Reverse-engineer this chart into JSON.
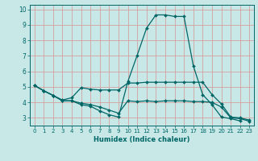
{
  "xlabel": "Humidex (Indice chaleur)",
  "ylabel": "",
  "bg_color": "#c8e8e8",
  "grid_color": "#d4a0a0",
  "line_color": "#006666",
  "xlim": [
    -0.5,
    23.5
  ],
  "ylim": [
    2.5,
    10.3
  ],
  "xticks": [
    0,
    1,
    2,
    3,
    4,
    5,
    6,
    7,
    8,
    9,
    10,
    11,
    12,
    13,
    14,
    15,
    16,
    17,
    18,
    19,
    20,
    21,
    22,
    23
  ],
  "yticks": [
    3,
    4,
    5,
    6,
    7,
    8,
    9,
    10
  ],
  "series": [
    {
      "x": [
        0,
        1,
        2,
        3,
        4,
        5,
        6,
        7,
        8,
        9,
        10,
        11,
        12,
        13,
        14,
        15,
        16,
        17,
        18,
        19,
        20,
        21,
        22,
        23
      ],
      "y": [
        5.1,
        4.75,
        4.45,
        4.1,
        4.1,
        3.85,
        3.75,
        3.45,
        3.2,
        3.05,
        5.35,
        7.05,
        8.8,
        9.65,
        9.65,
        9.55,
        9.55,
        6.35,
        4.5,
        3.85,
        3.05,
        2.95,
        2.8,
        null
      ]
    },
    {
      "x": [
        0,
        1,
        2,
        3,
        4,
        5,
        6,
        7,
        8,
        9,
        10,
        11,
        12,
        13,
        14,
        15,
        16,
        17,
        18,
        19,
        20,
        21,
        22,
        23
      ],
      "y": [
        5.1,
        4.75,
        4.45,
        4.15,
        4.3,
        4.95,
        4.85,
        4.8,
        4.8,
        4.8,
        5.25,
        5.25,
        5.3,
        5.3,
        5.3,
        5.3,
        5.3,
        5.3,
        5.3,
        4.5,
        3.9,
        3.05,
        3.0,
        2.85
      ]
    },
    {
      "x": [
        0,
        1,
        2,
        3,
        4,
        5,
        6,
        7,
        8,
        9,
        10,
        11,
        12,
        13,
        14,
        15,
        16,
        17,
        18,
        19,
        20,
        21,
        22,
        23
      ],
      "y": [
        5.1,
        4.75,
        4.45,
        4.1,
        4.1,
        3.95,
        3.85,
        3.7,
        3.5,
        3.3,
        4.1,
        4.05,
        4.1,
        4.05,
        4.1,
        4.1,
        4.1,
        4.05,
        4.05,
        4.0,
        3.7,
        3.0,
        2.95,
        2.78
      ]
    }
  ]
}
